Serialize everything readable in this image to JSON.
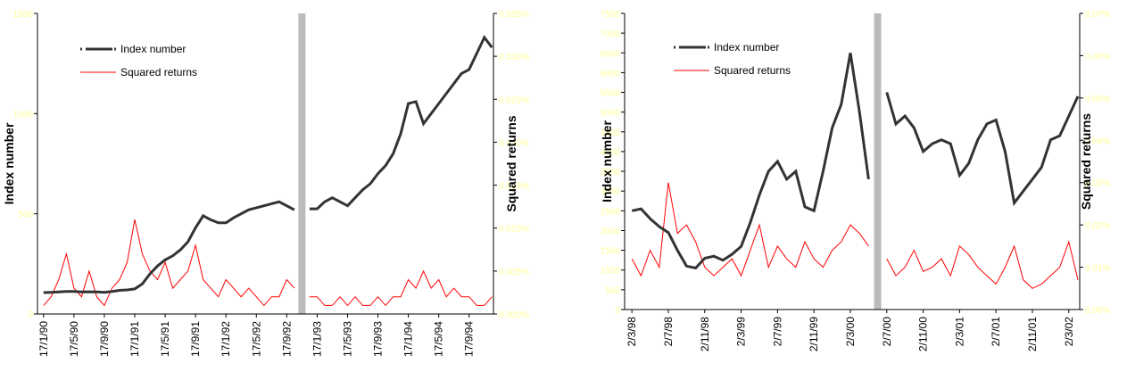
{
  "chart_data": [
    {
      "type": "line",
      "ylabel": "Index number",
      "y2label": "Squared returns",
      "categories": [
        "17/1/90",
        null,
        null,
        null,
        "17/5/90",
        null,
        null,
        null,
        "17/9/90",
        null,
        null,
        null,
        "17/1/91",
        null,
        null,
        null,
        "17/5/91",
        null,
        null,
        null,
        "17/9/91",
        null,
        null,
        null,
        "17/1/92",
        null,
        null,
        null,
        "17/5/92",
        null,
        null,
        null,
        "17/9/92",
        null,
        null,
        null,
        "17/1/93",
        null,
        null,
        null,
        "17/5/93",
        null,
        null,
        null,
        "17/9/93",
        null,
        null,
        null,
        "17/1/94",
        null,
        null,
        null,
        "17/5/94",
        null,
        null,
        null,
        "17/9/94",
        null,
        null,
        null
      ],
      "series": [
        {
          "name": "Index number",
          "color": "#333333",
          "values": [
            107,
            108,
            110,
            112,
            112,
            110,
            111,
            110,
            108,
            112,
            118,
            120,
            125,
            150,
            200,
            240,
            270,
            290,
            320,
            360,
            430,
            490,
            470,
            455,
            455,
            480,
            500,
            520,
            530,
            540,
            550,
            560,
            540,
            520,
            null,
            525,
            525,
            560,
            580,
            560,
            540,
            580,
            620,
            650,
            700,
            740,
            800,
            900,
            1050,
            1060,
            950,
            1000,
            1050,
            1100,
            1150,
            1200,
            1220,
            1300,
            1380,
            1330
          ]
        },
        {
          "name": "Squared returns",
          "color": "#ff0000",
          "axis": "y2",
          "values": [
            0.001,
            0.002,
            0.004,
            0.007,
            0.003,
            0.002,
            0.005,
            0.002,
            0.001,
            0.003,
            0.004,
            0.006,
            0.011,
            0.007,
            0.005,
            0.004,
            0.006,
            0.003,
            0.004,
            0.005,
            0.008,
            0.004,
            0.003,
            0.002,
            0.004,
            0.003,
            0.002,
            0.003,
            0.002,
            0.001,
            0.002,
            0.002,
            0.004,
            0.003,
            null,
            0.002,
            0.002,
            0.001,
            0.001,
            0.002,
            0.001,
            0.002,
            0.001,
            0.001,
            0.002,
            0.001,
            0.002,
            0.002,
            0.004,
            0.003,
            0.005,
            0.003,
            0.004,
            0.002,
            0.003,
            0.002,
            0.002,
            0.001,
            0.001,
            0.002
          ]
        }
      ],
      "ylim": [
        0,
        1500
      ],
      "yticks": [
        0,
        500,
        1000,
        1500
      ],
      "y2lim": [
        0,
        0.035
      ],
      "y2ticks": [
        {
          "value": 0,
          "label": "0.000%"
        },
        {
          "value": 0.005,
          "label": "0.005%"
        },
        {
          "value": 0.01,
          "label": "0.010%"
        },
        {
          "value": 0.015,
          "label": "0.015%"
        },
        {
          "value": 0.02,
          "label": "0.020%"
        },
        {
          "value": 0.025,
          "label": "0.025%"
        },
        {
          "value": 0.03,
          "label": "0.030%"
        },
        {
          "value": 0.035,
          "label": "0.035%"
        }
      ]
    },
    {
      "type": "line",
      "ylabel": "Index number",
      "y2label": "Squared returns",
      "categories": [
        "2/3/98",
        null,
        null,
        null,
        "2/7/98",
        null,
        null,
        null,
        "2/11/98",
        null,
        null,
        null,
        "2/3/99",
        null,
        null,
        null,
        "2/7/99",
        null,
        null,
        null,
        "2/11/99",
        null,
        null,
        null,
        "2/3/00",
        null,
        null,
        null,
        "2/7/00",
        null,
        null,
        null,
        "2/11/00",
        null,
        null,
        null,
        "2/3/01",
        null,
        null,
        null,
        "2/7/01",
        null,
        null,
        null,
        "2/11/01",
        null,
        null,
        null,
        "2/3/02",
        null
      ],
      "series": [
        {
          "name": "Index number",
          "color": "#333333",
          "values": [
            2500,
            2550,
            2300,
            2100,
            1950,
            1500,
            1100,
            1050,
            1300,
            1350,
            1250,
            1400,
            1600,
            2200,
            2900,
            3500,
            3750,
            3300,
            3500,
            2600,
            2500,
            3500,
            4600,
            5200,
            6500,
            5000,
            3300,
            null,
            5500,
            4700,
            4900,
            4600,
            4000,
            4200,
            4300,
            4200,
            3400,
            3700,
            4300,
            4700,
            4800,
            4000,
            2700,
            3000,
            3300,
            3600,
            4300,
            4400,
            4900,
            5400
          ]
        },
        {
          "name": "Squared returns",
          "color": "#ff0000",
          "axis": "y2",
          "values": [
            0.012,
            0.008,
            0.014,
            0.01,
            0.03,
            0.018,
            0.02,
            0.016,
            0.01,
            0.008,
            0.01,
            0.012,
            0.008,
            0.014,
            0.02,
            0.01,
            0.015,
            0.012,
            0.01,
            0.016,
            0.012,
            0.01,
            0.014,
            0.016,
            0.02,
            0.018,
            0.015,
            null,
            0.012,
            0.008,
            0.01,
            0.014,
            0.009,
            0.01,
            0.012,
            0.008,
            0.015,
            0.013,
            0.01,
            0.008,
            0.006,
            0.01,
            0.015,
            0.007,
            0.005,
            0.006,
            0.008,
            0.01,
            0.016,
            0.007
          ]
        }
      ],
      "ylim": [
        0,
        7500
      ],
      "yticks": [
        0,
        500,
        1000,
        1500,
        2000,
        2500,
        3000,
        3500,
        4000,
        4500,
        5000,
        5500,
        6000,
        6500,
        7000,
        7500
      ],
      "y2lim": [
        0,
        0.07
      ],
      "y2ticks": [
        {
          "value": 0,
          "label": "0.00%"
        },
        {
          "value": 0.01,
          "label": "0.01%"
        },
        {
          "value": 0.02,
          "label": "0.02%"
        },
        {
          "value": 0.03,
          "label": "0.03%"
        },
        {
          "value": 0.04,
          "label": "0.04%"
        },
        {
          "value": 0.05,
          "label": "0.05%"
        },
        {
          "value": 0.06,
          "label": "0.06%"
        },
        {
          "value": 0.07,
          "label": "0.07%"
        }
      ]
    }
  ]
}
